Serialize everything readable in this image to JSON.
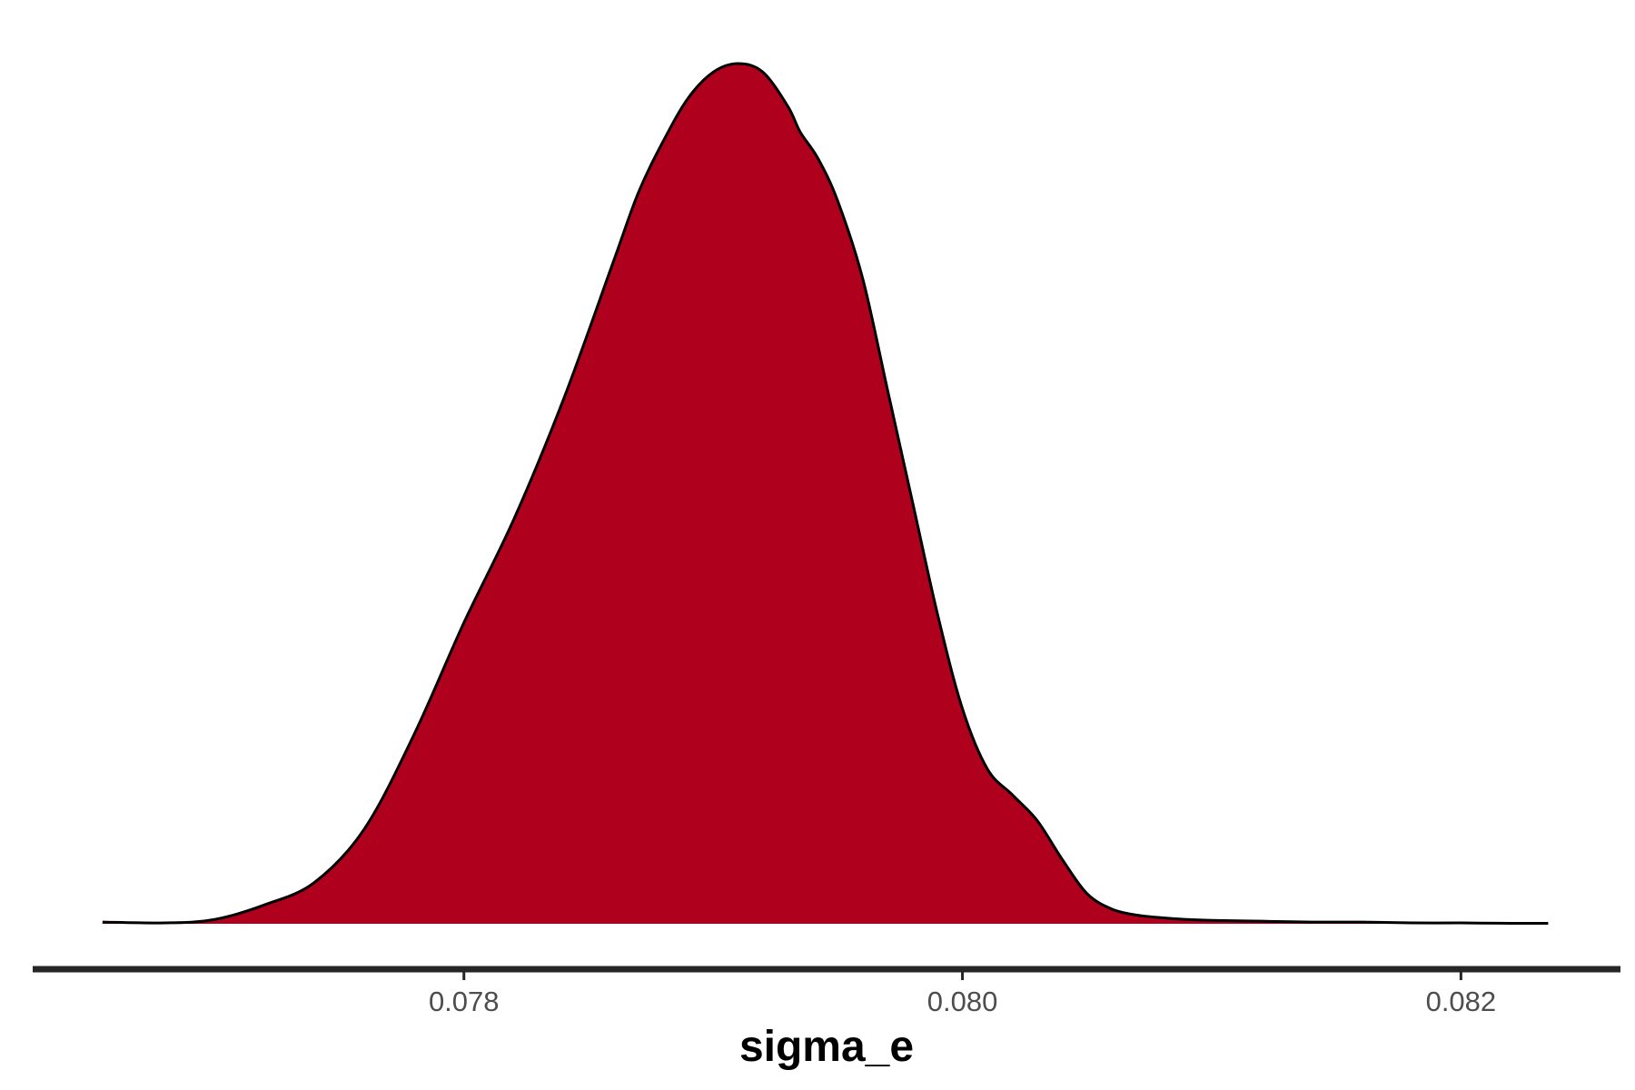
{
  "chart_data": {
    "type": "area",
    "subtype": "density",
    "title": "",
    "xlabel": "sigma_e",
    "ylabel": "",
    "xlim": [
      0.07627,
      0.08264
    ],
    "ylim": [
      0,
      1
    ],
    "x_ticks": [
      0.078,
      0.08,
      0.082
    ],
    "x_tick_labels": [
      "0.078",
      "0.080",
      "0.082"
    ],
    "grid": false,
    "legend": "none",
    "fill_color": "#AF001E",
    "line_color": "#000000",
    "axis_color": "#262626",
    "series": [
      {
        "x": [
          0.07655,
          0.0768,
          0.077,
          0.0772,
          0.0774,
          0.0776,
          0.0778,
          0.078,
          0.0782,
          0.0784,
          0.0786,
          0.0787,
          0.0788,
          0.0789,
          0.079,
          0.0791,
          0.0792,
          0.0793,
          0.07935,
          0.07942,
          0.0795,
          0.0796,
          0.0797,
          0.0798,
          0.0799,
          0.08,
          0.0801,
          0.0802,
          0.0803,
          0.0804,
          0.0805,
          0.0806,
          0.0807,
          0.0808,
          0.0809,
          0.081,
          0.0812,
          0.0814,
          0.0816,
          0.0818,
          0.082,
          0.0822,
          0.08235
        ],
        "y": [
          0.002,
          0.001,
          0.005,
          0.022,
          0.048,
          0.11,
          0.22,
          0.35,
          0.47,
          0.61,
          0.77,
          0.85,
          0.91,
          0.96,
          0.99,
          1.0,
          0.99,
          0.95,
          0.92,
          0.89,
          0.84,
          0.75,
          0.62,
          0.49,
          0.36,
          0.25,
          0.18,
          0.15,
          0.12,
          0.075,
          0.035,
          0.017,
          0.01,
          0.007,
          0.005,
          0.004,
          0.003,
          0.002,
          0.002,
          0.001,
          0.001,
          0.0005,
          0.0005
        ]
      }
    ]
  }
}
